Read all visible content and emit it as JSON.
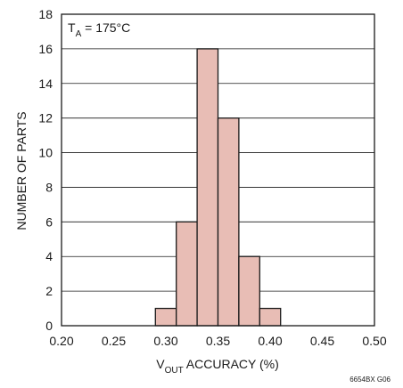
{
  "chart_data": {
    "type": "bar",
    "title": "",
    "annotation": {
      "main": "T",
      "subscript": "A",
      "rest": " = 175°C"
    },
    "xlabel": {
      "main": "V",
      "subscript": "OUT",
      "rest": " ACCURACY (%)"
    },
    "ylabel": "NUMBER OF PARTS",
    "xlim": [
      0.2,
      0.5
    ],
    "ylim": [
      0,
      18
    ],
    "x_ticks": [
      "0.20",
      "0.25",
      "0.30",
      "0.35",
      "0.40",
      "0.45",
      "0.50"
    ],
    "y_ticks": [
      "0",
      "2",
      "4",
      "6",
      "8",
      "10",
      "12",
      "14",
      "16",
      "18"
    ],
    "bins": [
      {
        "from": 0.29,
        "to": 0.31,
        "count": 1
      },
      {
        "from": 0.31,
        "to": 0.33,
        "count": 6
      },
      {
        "from": 0.33,
        "to": 0.35,
        "count": 16
      },
      {
        "from": 0.35,
        "to": 0.37,
        "count": 12
      },
      {
        "from": 0.37,
        "to": 0.39,
        "count": 4
      },
      {
        "from": 0.39,
        "to": 0.41,
        "count": 1
      }
    ],
    "grid": "horizontal",
    "footnote": "6654BX G06"
  }
}
